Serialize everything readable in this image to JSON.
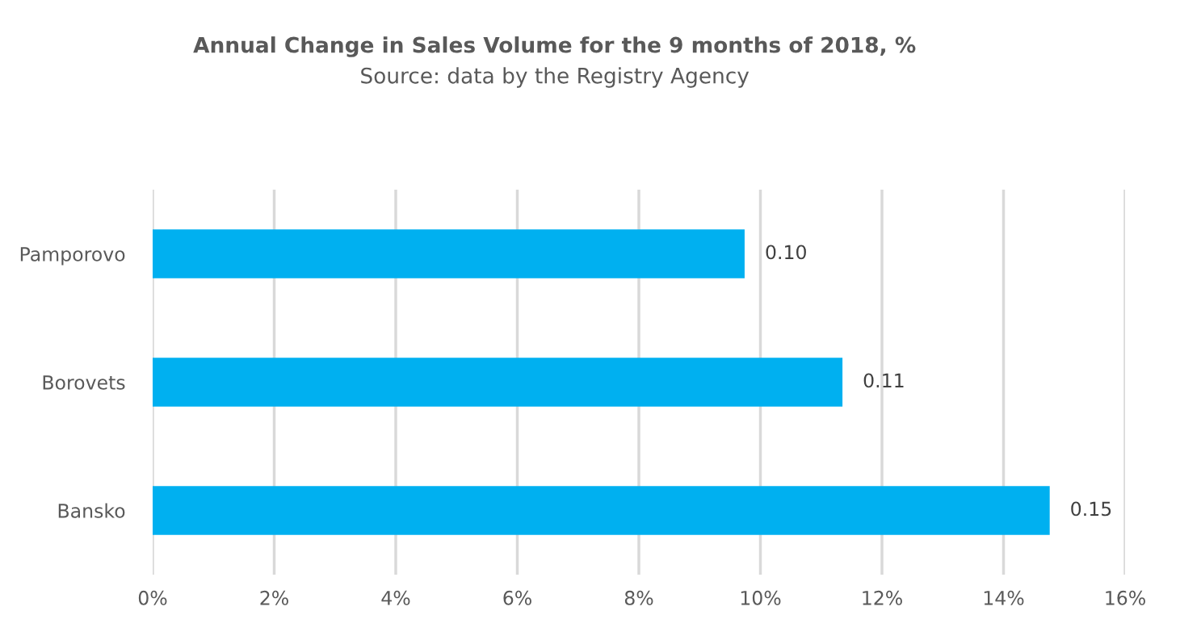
{
  "chart_data": {
    "type": "bar",
    "orientation": "horizontal",
    "title": "Annual Change in Sales Volume for the 9 months of 2018, %",
    "subtitle": "Source: data by the Registry Agency",
    "categories": [
      "Pamporovo",
      "Borovets",
      "Bansko"
    ],
    "values": [
      0.0974,
      0.1135,
      0.1476
    ],
    "value_labels": [
      "0.10",
      "0.11",
      "0.15"
    ],
    "color": "#00b0f0",
    "xlim": [
      0,
      0.16
    ],
    "xticks": [
      {
        "value": 0,
        "label": "0%"
      },
      {
        "value": 0.02,
        "label": "2%"
      },
      {
        "value": 0.04,
        "label": "4%"
      },
      {
        "value": 0.06,
        "label": "6%"
      },
      {
        "value": 0.08,
        "label": "8%"
      },
      {
        "value": 0.1,
        "label": "10%"
      },
      {
        "value": 0.12,
        "label": "12%"
      },
      {
        "value": 0.14,
        "label": "14%"
      },
      {
        "value": 0.16,
        "label": "16%"
      }
    ],
    "grid": "x"
  }
}
